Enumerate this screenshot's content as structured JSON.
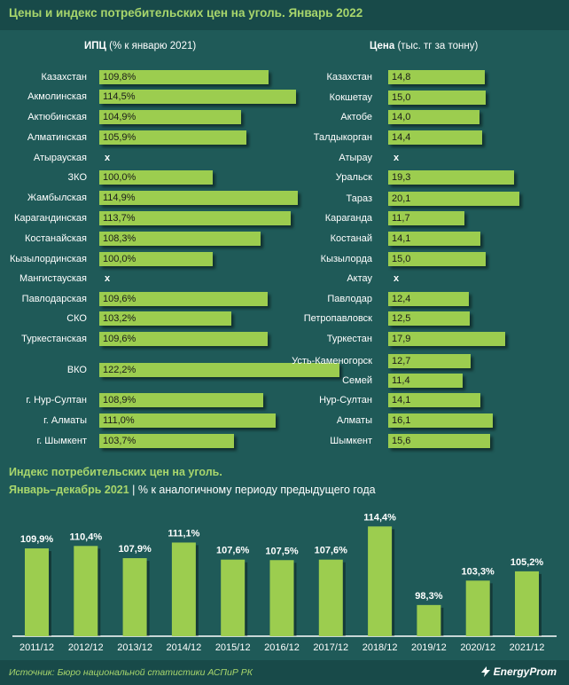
{
  "header": {
    "title": "Цены и индекс потребительских цен на уголь. Январь 2022"
  },
  "left_panel": {
    "title_bold": "ИПЦ",
    "title_rest": " (% к январю 2021)",
    "rows": [
      {
        "label": "Казахстан",
        "value": 109.8,
        "text": "109,8%"
      },
      {
        "label": "Акмолинская",
        "value": 114.5,
        "text": "114,5%"
      },
      {
        "label": "Актюбинская",
        "value": 104.9,
        "text": "104,9%"
      },
      {
        "label": "Алматинская",
        "value": 105.9,
        "text": "105,9%"
      },
      {
        "label": "Атырауская",
        "value": null,
        "text": "x"
      },
      {
        "label": "ЗКО",
        "value": 100.0,
        "text": "100,0%"
      },
      {
        "label": "Жамбылская",
        "value": 114.9,
        "text": "114,9%"
      },
      {
        "label": "Карагандинская",
        "value": 113.7,
        "text": "113,7%"
      },
      {
        "label": "Костанайская",
        "value": 108.3,
        "text": "108,3%"
      },
      {
        "label": "Кызылординская",
        "value": 100.0,
        "text": "100,0%"
      },
      {
        "label": "Мангистауская",
        "value": null,
        "text": "x"
      },
      {
        "label": "Павлодарская",
        "value": 109.6,
        "text": "109,6%"
      },
      {
        "label": "СКО",
        "value": 103.2,
        "text": "103,2%"
      },
      {
        "label": "Туркестанская",
        "value": 109.6,
        "text": "109,6%"
      },
      {
        "label": "ВКО",
        "value": 122.2,
        "text": "122,2%"
      },
      {
        "label": "г. Нур-Султан",
        "value": 108.9,
        "text": "108,9%"
      },
      {
        "label": "г. Алматы",
        "value": 111.0,
        "text": "111,0%"
      },
      {
        "label": "г. Шымкент",
        "value": 103.7,
        "text": "103,7%"
      }
    ]
  },
  "right_panel": {
    "title_bold": "Цена",
    "title_rest": " (тыс. тг за тонну)",
    "rows": [
      {
        "label": "Казахстан",
        "value": 14.8,
        "text": "14,8"
      },
      {
        "label": "Кокшетау",
        "value": 15.0,
        "text": "15,0"
      },
      {
        "label": "Актобе",
        "value": 14.0,
        "text": "14,0"
      },
      {
        "label": "Талдыкорган",
        "value": 14.4,
        "text": "14,4"
      },
      {
        "label": "Атырау",
        "value": null,
        "text": "x"
      },
      {
        "label": "Уральск",
        "value": 19.3,
        "text": "19,3"
      },
      {
        "label": "Тараз",
        "value": 20.1,
        "text": "20,1"
      },
      {
        "label": "Караганда",
        "value": 11.7,
        "text": "11,7"
      },
      {
        "label": "Костанай",
        "value": 14.1,
        "text": "14,1"
      },
      {
        "label": "Кызылорда",
        "value": 15.0,
        "text": "15,0"
      },
      {
        "label": "Актау",
        "value": null,
        "text": "x"
      },
      {
        "label": "Павлодар",
        "value": 12.4,
        "text": "12,4"
      },
      {
        "label": "Петропавловск",
        "value": 12.5,
        "text": "12,5"
      },
      {
        "label": "Туркестан",
        "value": 17.9,
        "text": "17,9"
      },
      {
        "label": "Усть-Каменогорск",
        "value": 12.7,
        "text": "12,7"
      },
      {
        "label": "Семей",
        "value": 11.4,
        "text": "11,4"
      },
      {
        "label": "Нур-Султан",
        "value": 14.1,
        "text": "14,1"
      },
      {
        "label": "Алматы",
        "value": 16.1,
        "text": "16,1"
      },
      {
        "label": "Шымкент",
        "value": 15.6,
        "text": "15,6"
      }
    ]
  },
  "section2": {
    "title": "Индекс потребительских цен на уголь.",
    "subtitle_green": "Январь–декабрь 2021",
    "subtitle_sep": " | ",
    "subtitle_rest": "% к аналогичному периоду предыдущего года"
  },
  "chart_data": [
    {
      "type": "bar",
      "orientation": "horizontal",
      "title": "ИПЦ (% к январю 2021)",
      "categories": [
        "Казахстан",
        "Акмолинская",
        "Актюбинская",
        "Алматинская",
        "Атырауская",
        "ЗКО",
        "Жамбылская",
        "Карагандинская",
        "Костанайская",
        "Кызылординская",
        "Мангистауская",
        "Павлодарская",
        "СКО",
        "Туркестанская",
        "ВКО",
        "г. Нур-Султан",
        "г. Алматы",
        "г. Шымкент"
      ],
      "values": [
        109.8,
        114.5,
        104.9,
        105.9,
        null,
        100.0,
        114.9,
        113.7,
        108.3,
        100.0,
        null,
        109.6,
        103.2,
        109.6,
        122.2,
        108.9,
        111.0,
        103.7
      ]
    },
    {
      "type": "bar",
      "orientation": "horizontal",
      "title": "Цена (тыс. тг за тонну)",
      "categories": [
        "Казахстан",
        "Кокшетау",
        "Актобе",
        "Талдыкорган",
        "Атырау",
        "Уральск",
        "Тараз",
        "Караганда",
        "Костанай",
        "Кызылорда",
        "Актау",
        "Павлодар",
        "Петропавловск",
        "Туркестан",
        "Усть-Каменогорск",
        "Семей",
        "Нур-Султан",
        "Алматы",
        "Шымкент"
      ],
      "values": [
        14.8,
        15.0,
        14.0,
        14.4,
        null,
        19.3,
        20.1,
        11.7,
        14.1,
        15.0,
        null,
        12.4,
        12.5,
        17.9,
        12.7,
        11.4,
        14.1,
        16.1,
        15.6
      ]
    },
    {
      "type": "bar",
      "title": "Индекс потребительских цен на уголь. Январь–декабрь 2021",
      "ylabel": "% к аналогичному периоду предыдущего года",
      "categories": [
        "2011/12",
        "2012/12",
        "2013/12",
        "2014/12",
        "2015/12",
        "2016/12",
        "2017/12",
        "2018/12",
        "2019/12",
        "2020/12",
        "2021/12"
      ],
      "values": [
        109.9,
        110.4,
        107.9,
        111.1,
        107.6,
        107.5,
        107.6,
        114.4,
        98.3,
        103.3,
        105.2
      ],
      "labels": [
        "109,9%",
        "110,4%",
        "107,9%",
        "111,1%",
        "107,6%",
        "107,5%",
        "107,6%",
        "114,4%",
        "98,3%",
        "103,3%",
        "105,2%"
      ]
    }
  ],
  "footer": {
    "source": "Источник: Бюро национальной статистики АСПиР РК",
    "logo": "EnergyProm"
  }
}
